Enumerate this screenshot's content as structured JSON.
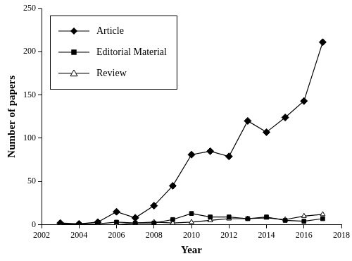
{
  "chart_data": {
    "type": "line",
    "x_label": "Year",
    "y_label": "Number of papers",
    "x": [
      2003,
      2004,
      2005,
      2006,
      2007,
      2008,
      2009,
      2010,
      2011,
      2012,
      2013,
      2014,
      2015,
      2016,
      2017
    ],
    "series": [
      {
        "name": "Article",
        "color": "#000000",
        "marker": "diamond",
        "values": [
          2,
          1,
          3,
          15,
          8,
          22,
          45,
          81,
          85,
          79,
          120,
          107,
          124,
          143,
          211
        ]
      },
      {
        "name": "Editorial Material",
        "color": "#000000",
        "marker": "square",
        "values": [
          1,
          0,
          1,
          3,
          2,
          2,
          6,
          13,
          9,
          9,
          7,
          9,
          5,
          4,
          7
        ]
      },
      {
        "name": "Review",
        "color": "#000000",
        "marker": "triangle",
        "values": [
          0,
          1,
          0,
          0,
          2,
          3,
          2,
          3,
          5,
          7,
          7,
          8,
          6,
          10,
          12
        ]
      }
    ],
    "xlim": [
      2002,
      2018
    ],
    "xticks": [
      2002,
      2004,
      2006,
      2008,
      2010,
      2012,
      2014,
      2016,
      2018
    ],
    "ylim": [
      0,
      250
    ],
    "yticks": [
      0,
      50,
      100,
      150,
      200,
      250
    ],
    "grid": false,
    "legend": "upper left"
  }
}
